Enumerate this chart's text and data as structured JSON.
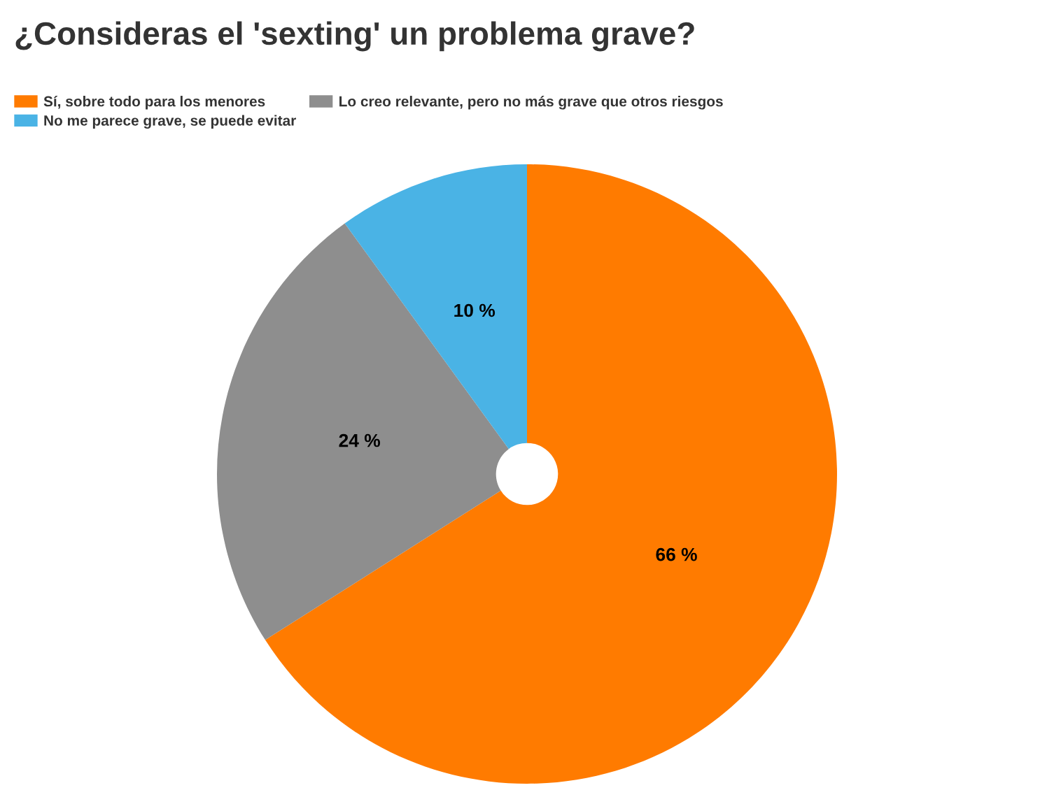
{
  "chart_data": {
    "type": "pie",
    "title": "¿Consideras el 'sexting' un problema grave?",
    "categories": [
      "Sí, sobre todo para los menores",
      "Lo creo relevante, pero no más grave que otros riesgos",
      "No me parece grave, se puede evitar"
    ],
    "values": [
      66,
      24,
      10
    ],
    "colors": [
      "#ff7b00",
      "#8e8e8e",
      "#4ab3e5"
    ],
    "value_labels": [
      "66 %",
      "24 %",
      "10 %"
    ],
    "legend": "top left"
  }
}
